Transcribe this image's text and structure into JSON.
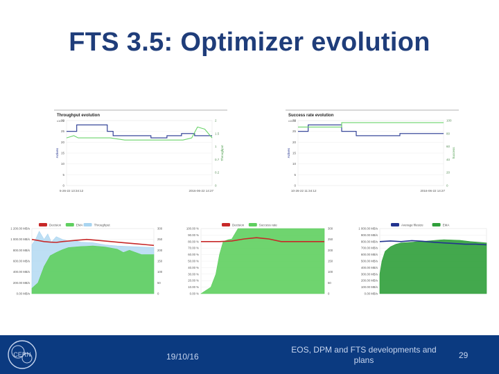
{
  "slide": {
    "title": "FTS 3.5: Optimizer evolution",
    "footer_date": "19/10/16",
    "footer_description": "EOS, DPM and FTS developments and plans",
    "slide_number": "29",
    "logo_text": "CERN"
  },
  "colors": {
    "title": "#1f3d7a",
    "footer_bg": "#0b3a80",
    "throughput_blue": "#22338f",
    "green_line": "#6ad46a",
    "area_green": "#5fcf5f",
    "area_dark": "#2f9f3a",
    "decision_red": "#c72828",
    "throughput_lightblue": "#a8d4f0"
  },
  "chart_data": [
    {
      "type": "line",
      "title": "Throughput evolution",
      "left_ylabel": "Actives",
      "right_ylabel": "Throughput",
      "y_scale_note": "x10^3",
      "left_ticks": [
        "0",
        "5",
        "10",
        "15",
        "20",
        "25",
        "30"
      ],
      "right_ticks": [
        "0",
        "0.2",
        "0.7",
        "1",
        "1.5",
        "2"
      ],
      "x_ticks": [
        "5-26-22 13:34:12",
        "2016-06-22 14:27"
      ],
      "ylim": [
        0,
        30
      ],
      "series": [
        {
          "name": "Actives",
          "color": "#22338f",
          "x": [
            0,
            0.07,
            0.07,
            0.28,
            0.28,
            0.32,
            0.32,
            0.58,
            0.58,
            0.69,
            0.69,
            0.79,
            0.79,
            0.88,
            0.88,
            1.0
          ],
          "values": [
            25,
            25,
            28,
            28,
            25,
            25,
            23,
            23,
            22,
            22,
            23,
            23,
            24,
            24,
            23,
            23
          ]
        },
        {
          "name": "Throughput",
          "color": "#6ad46a",
          "x": [
            0,
            0.05,
            0.08,
            0.3,
            0.4,
            0.55,
            0.7,
            0.8,
            0.86,
            0.9,
            0.95,
            1.0
          ],
          "values": [
            22,
            23,
            22,
            22,
            21,
            21,
            21,
            21,
            22,
            27,
            26,
            22
          ]
        }
      ]
    },
    {
      "type": "line",
      "title": "Success rate evolution",
      "left_ylabel": "Actives",
      "right_ylabel": "Success",
      "y_scale_note": "x10^3",
      "left_ticks": [
        "0",
        "5",
        "10",
        "15",
        "20",
        "25",
        "30"
      ],
      "right_ticks": [
        "0",
        "20",
        "40",
        "60",
        "80",
        "100"
      ],
      "x_ticks": [
        "10-26-22 11:34:12",
        "2016-06-22 14:27"
      ],
      "ylim": [
        0,
        30
      ],
      "series": [
        {
          "name": "Actives",
          "color": "#22338f",
          "x": [
            0,
            0.07,
            0.07,
            0.3,
            0.3,
            0.4,
            0.4,
            0.7,
            0.7,
            1.0
          ],
          "values": [
            25,
            25,
            28,
            28,
            25,
            25,
            23,
            23,
            24,
            24
          ]
        },
        {
          "name": "Success rate",
          "color": "#6ad46a",
          "x": [
            0,
            0.3,
            0.3,
            1.0
          ],
          "values": [
            27,
            27,
            29,
            29
          ]
        }
      ]
    },
    {
      "type": "area",
      "legend": [
        "Decision",
        "EMA",
        "Throughput"
      ],
      "left_ticks": [
        "1 200.00 MB/s",
        "1 000.00 MB/s",
        "800.00 MB/s",
        "600.00 MB/s",
        "400.00 MB/s",
        "200.00 MB/s",
        "0.00 MB/s"
      ],
      "right_ticks": [
        "300",
        "250",
        "200",
        "150",
        "100",
        "50",
        "0"
      ],
      "ylim": [
        0,
        1200
      ],
      "series": [
        {
          "name": "Throughput",
          "color": "#a8d4f0",
          "x": [
            0,
            0.03,
            0.06,
            0.1,
            0.13,
            0.16,
            0.2,
            0.25,
            0.3,
            0.35,
            0.4,
            0.5,
            0.6,
            0.7,
            0.8,
            0.9,
            1.0
          ],
          "values": [
            900,
            1000,
            1150,
            1000,
            1100,
            950,
            1050,
            1000,
            970,
            980,
            950,
            940,
            900,
            880,
            870,
            860,
            850
          ]
        },
        {
          "name": "EMA",
          "color": "#5fcf5f",
          "x": [
            0,
            0.05,
            0.1,
            0.15,
            0.2,
            0.25,
            0.3,
            0.4,
            0.5,
            0.6,
            0.65,
            0.7,
            0.75,
            0.8,
            0.9,
            1.0
          ],
          "values": [
            100,
            200,
            500,
            700,
            760,
            810,
            850,
            870,
            880,
            860,
            840,
            820,
            760,
            800,
            720,
            720
          ]
        },
        {
          "name": "Decision",
          "color": "#c72828",
          "x": [
            0,
            0.05,
            0.1,
            0.15,
            0.2,
            0.25,
            0.35,
            0.45,
            0.55,
            0.65,
            0.75,
            0.85,
            0.95,
            1.0
          ],
          "values": [
            1000,
            980,
            960,
            950,
            945,
            960,
            980,
            1000,
            980,
            960,
            940,
            920,
            900,
            890
          ]
        }
      ]
    },
    {
      "type": "area",
      "legend": [
        "Decision",
        "Success rate"
      ],
      "left_ticks": [
        "100.00 %",
        "90.00 %",
        "80.00 %",
        "70.00 %",
        "60.00 %",
        "50.00 %",
        "40.00 %",
        "30.00 %",
        "20.00 %",
        "10.00 %",
        "0.00 %"
      ],
      "right_ticks": [
        "300",
        "250",
        "200",
        "150",
        "100",
        "50",
        "0"
      ],
      "ylim": [
        0,
        100
      ],
      "series": [
        {
          "name": "Success rate",
          "color": "#5fcf5f",
          "x": [
            0,
            0.08,
            0.12,
            0.15,
            0.18,
            0.22,
            0.25,
            0.3,
            1.0
          ],
          "values": [
            0,
            10,
            30,
            60,
            80,
            83,
            84,
            100,
            100
          ]
        },
        {
          "name": "Decision",
          "color": "#c72828",
          "x": [
            0,
            0.05,
            0.1,
            0.15,
            0.25,
            0.35,
            0.45,
            0.55,
            0.65,
            0.75,
            0.85,
            0.95,
            1.0
          ],
          "values": [
            80,
            80,
            80,
            80,
            81,
            84,
            86,
            84,
            80,
            80,
            80,
            80,
            80
          ]
        }
      ]
    },
    {
      "type": "area",
      "legend": [
        "Average filesize",
        "EMA"
      ],
      "left_ticks": [
        "1 000.00 MB/s",
        "900.00 MB/s",
        "800.00 MB/s",
        "700.00 MB/s",
        "600.00 MB/s",
        "500.00 MB/s",
        "400.00 MB/s",
        "300.00 MB/s",
        "200.00 MB/s",
        "100.00 MB/s",
        "0.00 MB/s"
      ],
      "ylim": [
        0,
        1000
      ],
      "series": [
        {
          "name": "EMA",
          "color": "#2f9f3a",
          "x": [
            0,
            0.02,
            0.05,
            0.1,
            0.15,
            0.2,
            0.3,
            0.45,
            0.6,
            0.75,
            0.85,
            1.0
          ],
          "values": [
            300,
            500,
            650,
            720,
            760,
            780,
            790,
            810,
            830,
            820,
            800,
            780
          ]
        },
        {
          "name": "Average filesize",
          "color": "#22338f",
          "x": [
            0,
            0.1,
            0.2,
            0.3,
            0.4,
            0.5,
            0.6,
            0.7,
            0.8,
            0.9,
            1.0
          ],
          "values": [
            800,
            810,
            800,
            815,
            805,
            790,
            780,
            770,
            760,
            760,
            750
          ]
        }
      ]
    }
  ]
}
